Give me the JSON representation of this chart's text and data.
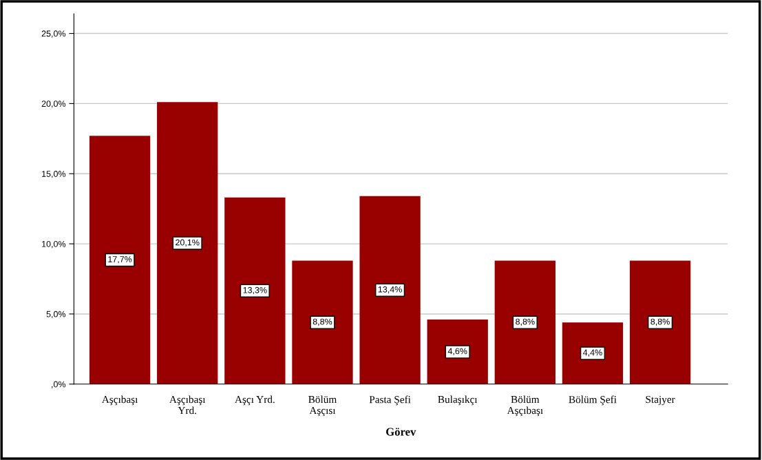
{
  "chart_data": {
    "type": "bar",
    "xlabel": "Görev",
    "categories": [
      "Aşçıbaşı",
      "Aşçıbaşı\nYrd.",
      "Aşçı Yrd.",
      "Bölüm\nAşçısı",
      "Pasta Şefi",
      "Bulaşıkçı",
      "Bölüm\nAşçıbaşı",
      "Bölüm Şefi",
      "Stajyer"
    ],
    "values": [
      17.7,
      20.1,
      13.3,
      8.8,
      13.4,
      4.6,
      8.8,
      4.4,
      8.8
    ],
    "value_labels": [
      "17,7%",
      "20,1%",
      "13,3%",
      "8,8%",
      "13,4%",
      "4,6%",
      "8,8%",
      "4,4%",
      "8,8%"
    ],
    "color": "#990000",
    "ylim": [
      0,
      26.4
    ],
    "yticks": [
      {
        "value": 0,
        "label": ",0%"
      },
      {
        "value": 5,
        "label": "5,0%"
      },
      {
        "value": 10,
        "label": "10,0%"
      },
      {
        "value": 15,
        "label": "15,0%"
      },
      {
        "value": 20,
        "label": "20,0%"
      },
      {
        "value": 25,
        "label": "25,0%"
      }
    ],
    "grid": "y"
  }
}
